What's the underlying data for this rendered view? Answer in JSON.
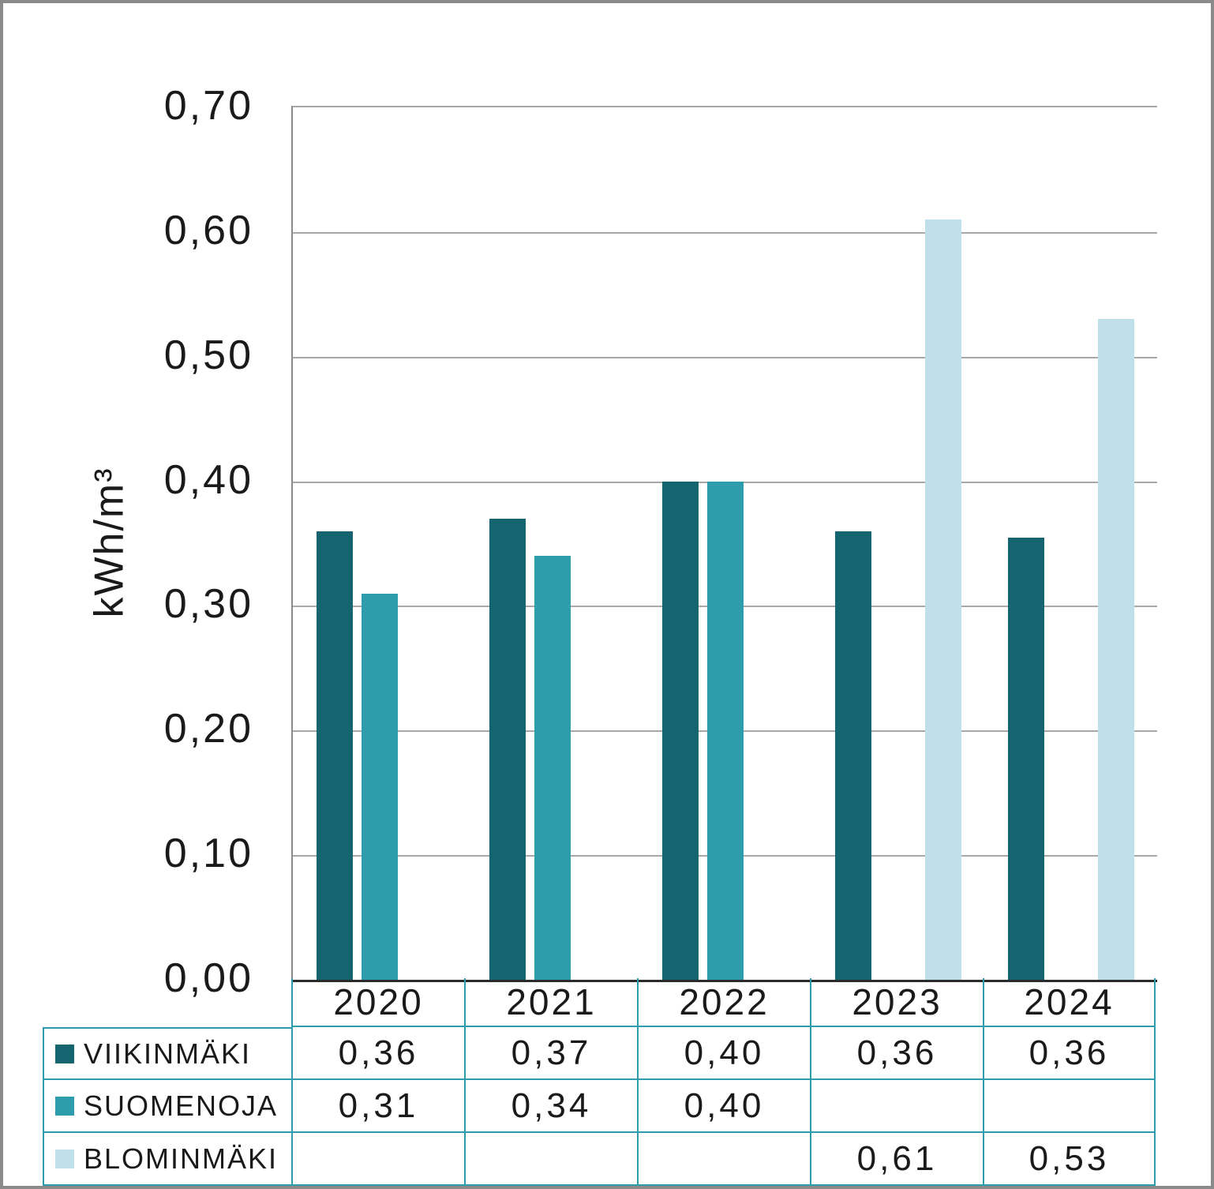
{
  "figure": {
    "ylabel": "kWh/m³"
  },
  "chart_data": {
    "type": "bar",
    "title": "",
    "xlabel": "",
    "ylabel": "kWh/m³",
    "ylim": [
      0,
      0.7
    ],
    "grid": true,
    "legend_position": "table-left",
    "ytick_values": [
      0.0,
      0.1,
      0.2,
      0.3,
      0.4,
      0.5,
      0.6,
      0.7
    ],
    "ytick_labels": [
      "0,00",
      "0,10",
      "0,20",
      "0,30",
      "0,40",
      "0,50",
      "0,60",
      "0,70"
    ],
    "categories": [
      "2020",
      "2021",
      "2022",
      "2023",
      "2024"
    ],
    "series": [
      {
        "id": "viikinmaki",
        "name": "VIIKINMÄKI",
        "color": "#156570",
        "values": [
          0.36,
          0.37,
          0.4,
          0.36,
          0.355
        ],
        "labels": [
          "0,36",
          "0,37",
          "0,40",
          "0,36",
          "0,36"
        ]
      },
      {
        "id": "suomenoja",
        "name": "SUOMENOJA",
        "color": "#2D9CAB",
        "values": [
          0.31,
          0.34,
          0.4,
          null,
          null
        ],
        "labels": [
          "0,31",
          "0,34",
          "0,40",
          "",
          ""
        ]
      },
      {
        "id": "blominmaki",
        "name": "BLOMINMÄKI",
        "color": "#BFE0EA",
        "values": [
          null,
          null,
          null,
          0.61,
          0.53
        ],
        "labels": [
          "",
          "",
          "",
          "0,61",
          "0,53"
        ]
      }
    ],
    "colors": {
      "table_border": "#2D9CAB",
      "gridline": "#A8A8A8",
      "axis": "#2B2B2B"
    }
  }
}
